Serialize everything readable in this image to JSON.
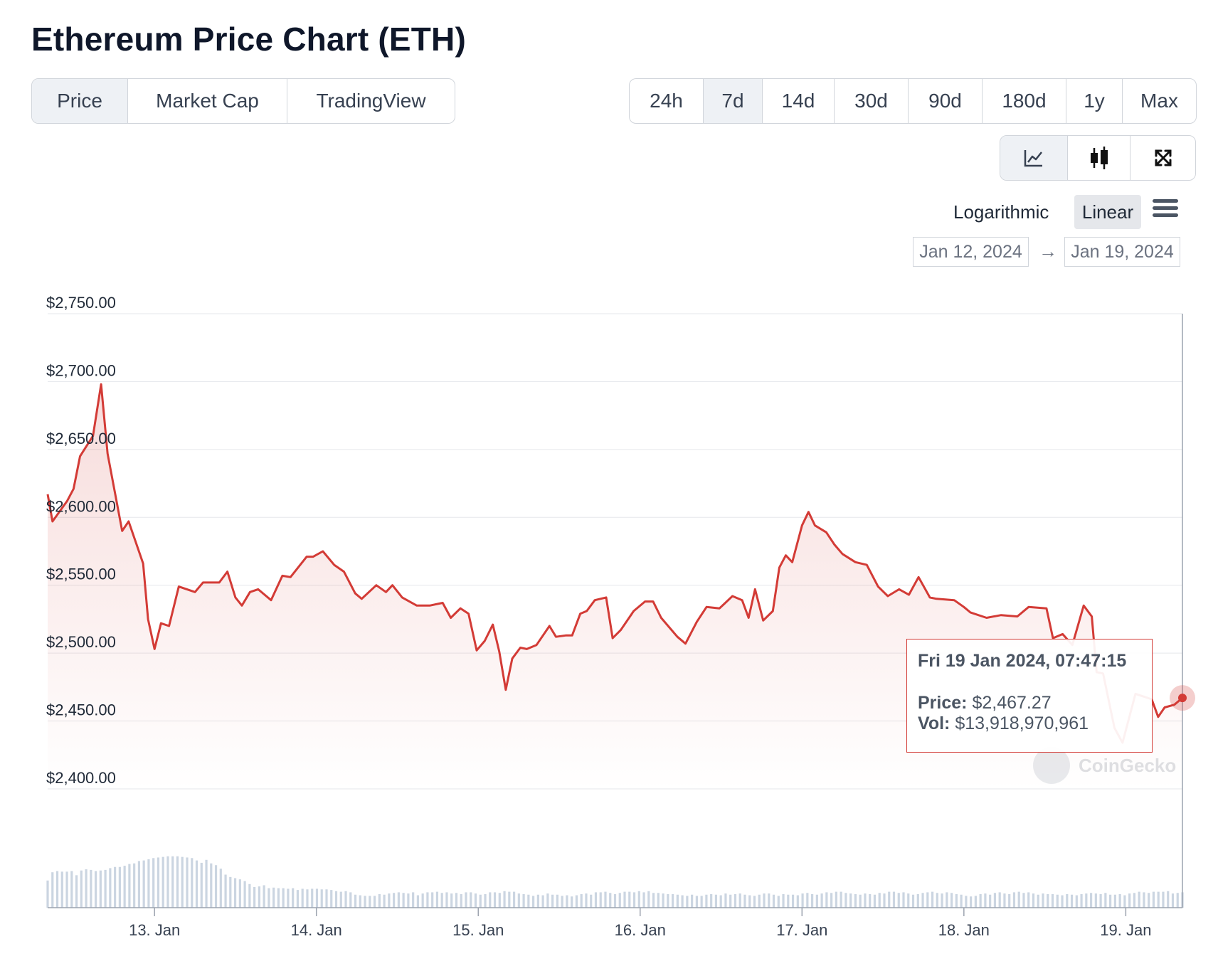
{
  "page": {
    "title": "Ethereum Price Chart (ETH)"
  },
  "tabs": [
    {
      "label": "Price",
      "active": true
    },
    {
      "label": "Market Cap",
      "active": false
    },
    {
      "label": "TradingView",
      "active": false
    }
  ],
  "periods": [
    {
      "label": "24h",
      "active": false
    },
    {
      "label": "7d",
      "active": true
    },
    {
      "label": "14d",
      "active": false
    },
    {
      "label": "30d",
      "active": false
    },
    {
      "label": "90d",
      "active": false
    },
    {
      "label": "180d",
      "active": false
    },
    {
      "label": "1y",
      "active": false
    },
    {
      "label": "Max",
      "active": false
    }
  ],
  "chart_types": [
    {
      "icon": "line-chart-icon",
      "active": true
    },
    {
      "icon": "candlestick-icon",
      "active": false
    },
    {
      "icon": "fullscreen-icon",
      "active": false
    }
  ],
  "scale": {
    "logarithmic": "Logarithmic",
    "linear": "Linear",
    "active": "linear"
  },
  "date_range": {
    "from": "Jan 12, 2024",
    "to": "Jan 19, 2024"
  },
  "tooltip": {
    "date": "Fri 19 Jan 2024, 07:47:15",
    "price_label": "Price:",
    "price_value": "$2,467.27",
    "vol_label": "Vol:",
    "vol_value": "$13,918,970,961"
  },
  "watermark": "CoinGecko",
  "colors": {
    "line": "#d33b36",
    "volume": "#cbd5e1",
    "grid": "#e5e7eb",
    "active_bg": "#eef1f5"
  },
  "chart_data": {
    "type": "line",
    "ylim": [
      2400,
      2750
    ],
    "y_ticks": [
      {
        "value": 2750,
        "label": "$2,750.00"
      },
      {
        "value": 2700,
        "label": "$2,700.00"
      },
      {
        "value": 2650,
        "label": "$2,650.00"
      },
      {
        "value": 2600,
        "label": "$2,600.00"
      },
      {
        "value": 2550,
        "label": "$2,550.00"
      },
      {
        "value": 2500,
        "label": "$2,500.00"
      },
      {
        "value": 2450,
        "label": "$2,450.00"
      },
      {
        "value": 2400,
        "label": "$2,400.00"
      }
    ],
    "x_ticks": [
      {
        "day": 13,
        "label": "13. Jan"
      },
      {
        "day": 14,
        "label": "14. Jan"
      },
      {
        "day": 15,
        "label": "15. Jan"
      },
      {
        "day": 16,
        "label": "16. Jan"
      },
      {
        "day": 17,
        "label": "17. Jan"
      },
      {
        "day": 18,
        "label": "18. Jan"
      },
      {
        "day": 19,
        "label": "19. Jan"
      }
    ],
    "xlim_days": [
      12.34,
      19.35
    ],
    "series": [
      {
        "points": [
          [
            12.34,
            2617
          ],
          [
            12.37,
            2597
          ],
          [
            12.46,
            2612
          ],
          [
            12.5,
            2621
          ],
          [
            12.54,
            2645
          ],
          [
            12.62,
            2660
          ],
          [
            12.67,
            2698
          ],
          [
            12.71,
            2647
          ],
          [
            12.8,
            2590
          ],
          [
            12.84,
            2597
          ],
          [
            12.93,
            2566
          ],
          [
            12.96,
            2525
          ],
          [
            13.0,
            2503
          ],
          [
            13.04,
            2522
          ],
          [
            13.09,
            2520
          ],
          [
            13.15,
            2549
          ],
          [
            13.25,
            2545
          ],
          [
            13.3,
            2552
          ],
          [
            13.4,
            2552
          ],
          [
            13.45,
            2560
          ],
          [
            13.5,
            2541
          ],
          [
            13.54,
            2535
          ],
          [
            13.59,
            2545
          ],
          [
            13.64,
            2547
          ],
          [
            13.72,
            2539
          ],
          [
            13.79,
            2557
          ],
          [
            13.84,
            2556
          ],
          [
            13.94,
            2571
          ],
          [
            13.98,
            2571
          ],
          [
            14.04,
            2575
          ],
          [
            14.11,
            2565
          ],
          [
            14.17,
            2560
          ],
          [
            14.24,
            2544
          ],
          [
            14.28,
            2540
          ],
          [
            14.37,
            2550
          ],
          [
            14.43,
            2545
          ],
          [
            14.47,
            2550
          ],
          [
            14.53,
            2541
          ],
          [
            14.62,
            2535
          ],
          [
            14.7,
            2535
          ],
          [
            14.78,
            2537
          ],
          [
            14.83,
            2526
          ],
          [
            14.89,
            2533
          ],
          [
            14.94,
            2529
          ],
          [
            14.99,
            2502
          ],
          [
            15.04,
            2509
          ],
          [
            15.09,
            2521
          ],
          [
            15.13,
            2501
          ],
          [
            15.17,
            2473
          ],
          [
            15.21,
            2496
          ],
          [
            15.26,
            2504
          ],
          [
            15.3,
            2503
          ],
          [
            15.36,
            2506
          ],
          [
            15.44,
            2520
          ],
          [
            15.48,
            2512
          ],
          [
            15.54,
            2513
          ],
          [
            15.58,
            2513
          ],
          [
            15.63,
            2529
          ],
          [
            15.67,
            2531
          ],
          [
            15.72,
            2539
          ],
          [
            15.79,
            2541
          ],
          [
            15.83,
            2511
          ],
          [
            15.88,
            2517
          ],
          [
            15.96,
            2531
          ],
          [
            16.03,
            2538
          ],
          [
            16.08,
            2538
          ],
          [
            16.13,
            2526
          ],
          [
            16.18,
            2519
          ],
          [
            16.23,
            2512
          ],
          [
            16.28,
            2507
          ],
          [
            16.35,
            2523
          ],
          [
            16.41,
            2534
          ],
          [
            16.49,
            2533
          ],
          [
            16.57,
            2542
          ],
          [
            16.63,
            2539
          ],
          [
            16.67,
            2526
          ],
          [
            16.71,
            2547
          ],
          [
            16.76,
            2524
          ],
          [
            16.82,
            2531
          ],
          [
            16.86,
            2563
          ],
          [
            16.9,
            2572
          ],
          [
            16.94,
            2567
          ],
          [
            17.0,
            2594
          ],
          [
            17.04,
            2604
          ],
          [
            17.08,
            2594
          ],
          [
            17.15,
            2589
          ],
          [
            17.2,
            2580
          ],
          [
            17.25,
            2573
          ],
          [
            17.33,
            2567
          ],
          [
            17.4,
            2565
          ],
          [
            17.47,
            2549
          ],
          [
            17.53,
            2542
          ],
          [
            17.6,
            2547
          ],
          [
            17.66,
            2543
          ],
          [
            17.72,
            2556
          ],
          [
            17.79,
            2541
          ],
          [
            17.83,
            2540
          ],
          [
            17.94,
            2539
          ],
          [
            18.0,
            2534
          ],
          [
            18.04,
            2530
          ],
          [
            18.14,
            2526
          ],
          [
            18.23,
            2528
          ],
          [
            18.33,
            2527
          ],
          [
            18.4,
            2534
          ],
          [
            18.51,
            2533
          ],
          [
            18.55,
            2511
          ],
          [
            18.61,
            2514
          ],
          [
            18.67,
            2506
          ],
          [
            18.74,
            2535
          ],
          [
            18.79,
            2527
          ],
          [
            18.82,
            2486
          ],
          [
            18.86,
            2485
          ],
          [
            18.93,
            2445
          ],
          [
            18.98,
            2434
          ],
          [
            19.06,
            2470
          ],
          [
            19.11,
            2468
          ],
          [
            19.16,
            2466
          ],
          [
            19.2,
            2453
          ],
          [
            19.24,
            2460
          ],
          [
            19.3,
            2462
          ],
          [
            19.35,
            2467
          ]
        ]
      }
    ],
    "volume_relative": [
      0.46,
      0.6,
      0.62,
      0.61,
      0.61,
      0.62,
      0.55,
      0.63,
      0.65,
      0.64,
      0.62,
      0.63,
      0.64,
      0.67,
      0.69,
      0.69,
      0.71,
      0.74,
      0.75,
      0.79,
      0.8,
      0.82,
      0.84,
      0.85,
      0.86,
      0.87,
      0.87,
      0.87,
      0.86,
      0.85,
      0.84,
      0.8,
      0.76,
      0.81,
      0.75,
      0.72,
      0.66,
      0.56,
      0.52,
      0.5,
      0.48,
      0.45,
      0.4,
      0.35,
      0.36,
      0.38,
      0.33,
      0.34,
      0.33,
      0.33,
      0.32,
      0.33,
      0.3,
      0.32,
      0.31,
      0.32,
      0.32,
      0.31,
      0.31,
      0.3,
      0.28,
      0.27,
      0.28,
      0.26,
      0.22,
      0.21,
      0.2,
      0.2,
      0.2,
      0.23,
      0.22,
      0.24,
      0.25,
      0.26,
      0.25,
      0.24,
      0.26,
      0.21,
      0.24,
      0.26,
      0.26,
      0.27,
      0.25,
      0.26,
      0.24,
      0.25,
      0.23,
      0.26,
      0.26,
      0.24,
      0.22,
      0.23,
      0.26,
      0.26,
      0.25,
      0.28,
      0.27,
      0.27,
      0.24,
      0.23,
      0.22,
      0.2,
      0.22,
      0.21,
      0.24,
      0.22,
      0.22,
      0.2,
      0.21,
      0.19,
      0.21,
      0.23,
      0.24,
      0.22,
      0.26,
      0.26,
      0.27,
      0.25,
      0.23,
      0.25,
      0.27,
      0.27,
      0.26,
      0.28,
      0.26,
      0.28,
      0.25,
      0.25,
      0.24,
      0.23,
      0.23,
      0.22,
      0.21,
      0.2,
      0.22,
      0.2,
      0.2,
      0.22,
      0.23,
      0.22,
      0.21,
      0.24,
      0.22,
      0.23,
      0.24,
      0.22,
      0.21,
      0.2,
      0.22,
      0.24,
      0.24,
      0.22,
      0.2,
      0.23,
      0.22,
      0.22,
      0.21,
      0.24,
      0.25,
      0.23,
      0.22,
      0.24,
      0.26,
      0.25,
      0.27,
      0.27,
      0.25,
      0.24,
      0.23,
      0.22,
      0.24,
      0.23,
      0.22,
      0.25,
      0.24,
      0.27,
      0.27,
      0.25,
      0.26,
      0.24,
      0.22,
      0.23,
      0.25,
      0.26,
      0.27,
      0.25,
      0.24,
      0.26,
      0.25,
      0.23,
      0.22,
      0.2,
      0.19,
      0.2,
      0.23,
      0.24,
      0.22,
      0.25,
      0.26,
      0.24,
      0.23,
      0.26,
      0.27,
      0.25,
      0.26,
      0.24,
      0.22,
      0.24,
      0.23,
      0.23,
      0.22,
      0.21,
      0.23,
      0.22,
      0.21,
      0.23,
      0.24,
      0.25,
      0.24,
      0.23,
      0.25,
      0.22,
      0.22,
      0.23,
      0.21,
      0.24,
      0.25,
      0.27,
      0.26,
      0.25,
      0.27,
      0.27,
      0.27,
      0.28,
      0.24,
      0.25,
      0.26
    ]
  }
}
